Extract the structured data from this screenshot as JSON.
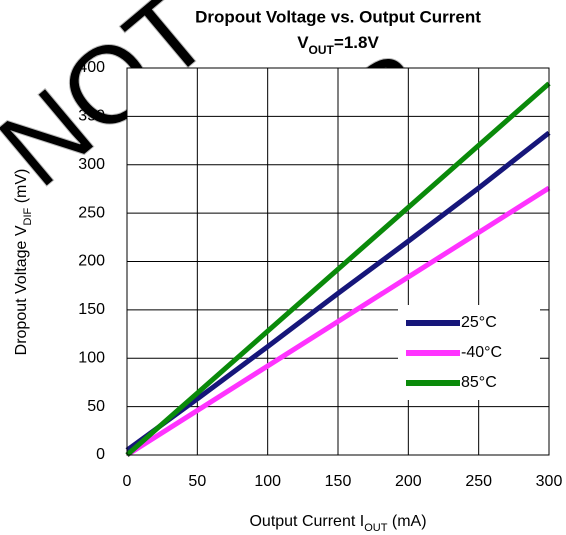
{
  "chart_data": {
    "type": "line",
    "title": "Dropout Voltage vs. Output Current",
    "subtitle": [
      "V",
      "OUT",
      "=1.8V"
    ],
    "x_label": [
      "Output Current I",
      "OUT",
      " (mA)"
    ],
    "y_label": [
      "Dropout Voltage V",
      "DIF",
      " (mV)"
    ],
    "annotations": [
      "NOT",
      "FOR"
    ],
    "x": [
      0,
      50,
      100,
      150,
      200,
      250,
      300
    ],
    "series": [
      {
        "name": "25°C",
        "color": "#16167a",
        "values": [
          5,
          58,
          112,
          167,
          221,
          276,
          333
        ]
      },
      {
        "name": "-40°C",
        "color": "#ff33ff",
        "values": [
          0,
          46,
          92,
          138,
          184,
          230,
          276
        ]
      },
      {
        "name": "85°C",
        "color": "#0a8a0a",
        "values": [
          0,
          64,
          128,
          192,
          256,
          320,
          384
        ]
      }
    ],
    "xlim": [
      0,
      300
    ],
    "xticks": [
      0,
      50,
      100,
      150,
      200,
      250,
      300
    ],
    "ylim": [
      0,
      400
    ],
    "yticks": [
      0,
      50,
      100,
      150,
      200,
      250,
      300,
      350,
      400
    ],
    "grid": true,
    "legend": "lower right"
  }
}
